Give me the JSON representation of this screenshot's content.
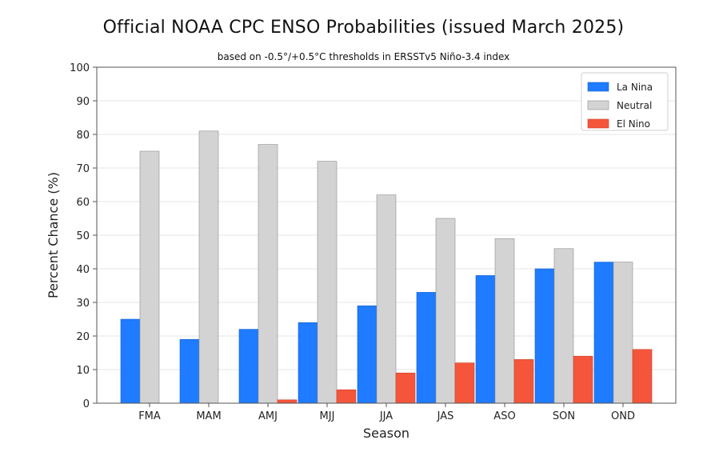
{
  "chart_data": {
    "type": "bar",
    "title": "Official NOAA CPC ENSO Probabilities (issued March 2025)",
    "subtitle": "based on -0.5°/+0.5°C thresholds in ERSSTv5 Niño-3.4 index",
    "xlabel": "Season",
    "ylabel": "Percent Chance (%)",
    "ylim": [
      0,
      100
    ],
    "yticks": [
      0,
      10,
      20,
      30,
      40,
      50,
      60,
      70,
      80,
      90,
      100
    ],
    "categories": [
      "FMA",
      "MAM",
      "AMJ",
      "MJJ",
      "JJA",
      "JAS",
      "ASO",
      "SON",
      "OND"
    ],
    "series": [
      {
        "name": "La Nina",
        "color": "#1f7bff",
        "values": [
          25,
          19,
          22,
          24,
          29,
          33,
          38,
          40,
          42
        ]
      },
      {
        "name": "Neutral",
        "color": "#d3d3d3",
        "values": [
          75,
          81,
          77,
          72,
          62,
          55,
          49,
          46,
          42
        ]
      },
      {
        "name": "El Nino",
        "color": "#f4553b",
        "values": [
          0,
          0,
          1,
          4,
          9,
          12,
          13,
          14,
          16
        ]
      }
    ],
    "grid": "horizontal",
    "legend": "top-right"
  }
}
